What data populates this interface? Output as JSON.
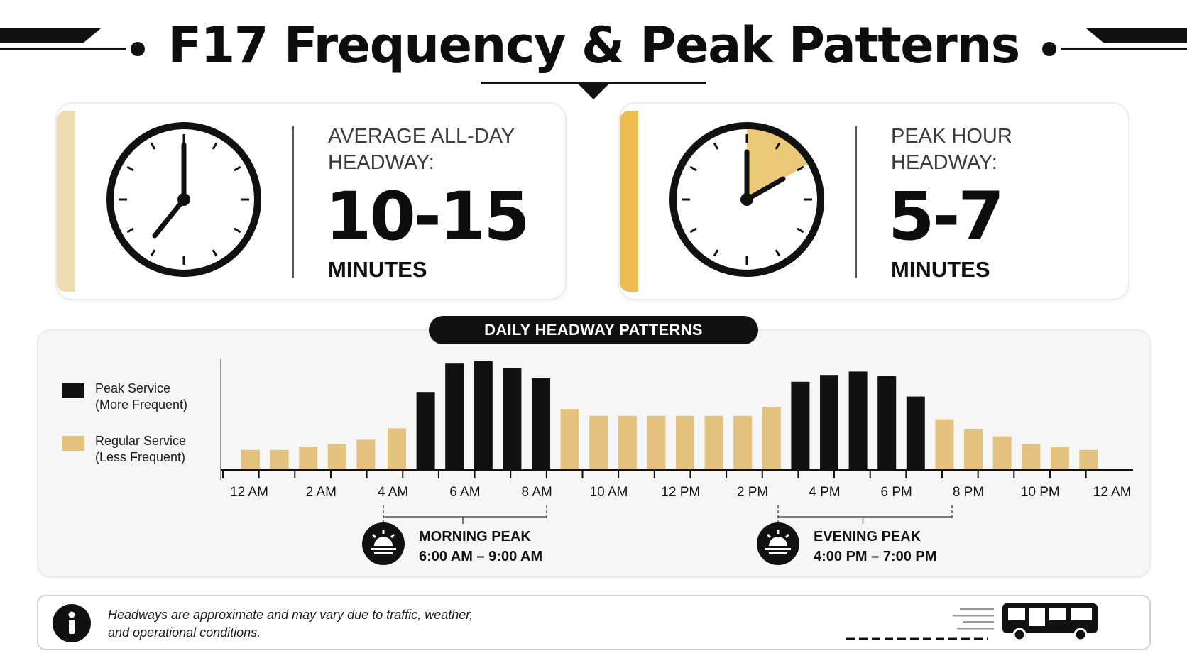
{
  "header": {
    "title": "F17 Frequency & Peak Patterns"
  },
  "colors": {
    "peak": "#111111",
    "regular": "#e2c27c",
    "accent_light": "#eedcb0",
    "accent_strong": "#edbd52"
  },
  "cards": [
    {
      "label_line1": "AVERAGE ALL-DAY",
      "label_line2": "HEADWAY:",
      "value": "10-15",
      "unit": "MINUTES",
      "icon": "clock-icon"
    },
    {
      "label_line1": "PEAK HOUR",
      "label_line2": "HEADWAY:",
      "value": "5-7",
      "unit": "MINUTES",
      "icon": "clock-peak-icon"
    }
  ],
  "legend": [
    {
      "line1": "Peak Service",
      "line2": "(More Frequent)",
      "type": "peak"
    },
    {
      "line1": "Regular Service",
      "line2": "(Less Frequent)",
      "type": "regular"
    }
  ],
  "peaks": [
    {
      "title": "MORNING PEAK",
      "time": "6:00 AM – 9:00 AM",
      "icon": "sunrise-icon"
    },
    {
      "title": "EVENING PEAK",
      "time": "4:00 PM – 7:00 PM",
      "icon": "sunset-icon"
    }
  ],
  "note": {
    "line1": "Headways are approximate and may vary due to traffic, weather,",
    "line2": "and operational conditions.",
    "icon": "info-icon"
  },
  "chart_data": {
    "type": "bar",
    "title": "DAILY HEADWAY PATTERNS",
    "x_tick_labels": [
      "12 AM",
      "2 AM",
      "4 AM",
      "6 AM",
      "8 AM",
      "10 AM",
      "12 PM",
      "2 PM",
      "4 PM",
      "6 PM",
      "8 PM",
      "10 PM",
      "12 AM"
    ],
    "y_axis_labeled": false,
    "values_relative": [
      17,
      17,
      20,
      22,
      26,
      36,
      68,
      93,
      95,
      89,
      80,
      53,
      47,
      47,
      47,
      47,
      47,
      47,
      55,
      77,
      83,
      86,
      82,
      64,
      44,
      35,
      29,
      22,
      20,
      17
    ],
    "service": [
      "regular",
      "regular",
      "regular",
      "regular",
      "regular",
      "regular",
      "peak",
      "peak",
      "peak",
      "peak",
      "peak",
      "regular",
      "regular",
      "regular",
      "regular",
      "regular",
      "regular",
      "regular",
      "regular",
      "peak",
      "peak",
      "peak",
      "peak",
      "peak",
      "regular",
      "regular",
      "regular",
      "regular",
      "regular",
      "regular"
    ],
    "ylim": [
      0,
      100
    ],
    "grid": false
  }
}
